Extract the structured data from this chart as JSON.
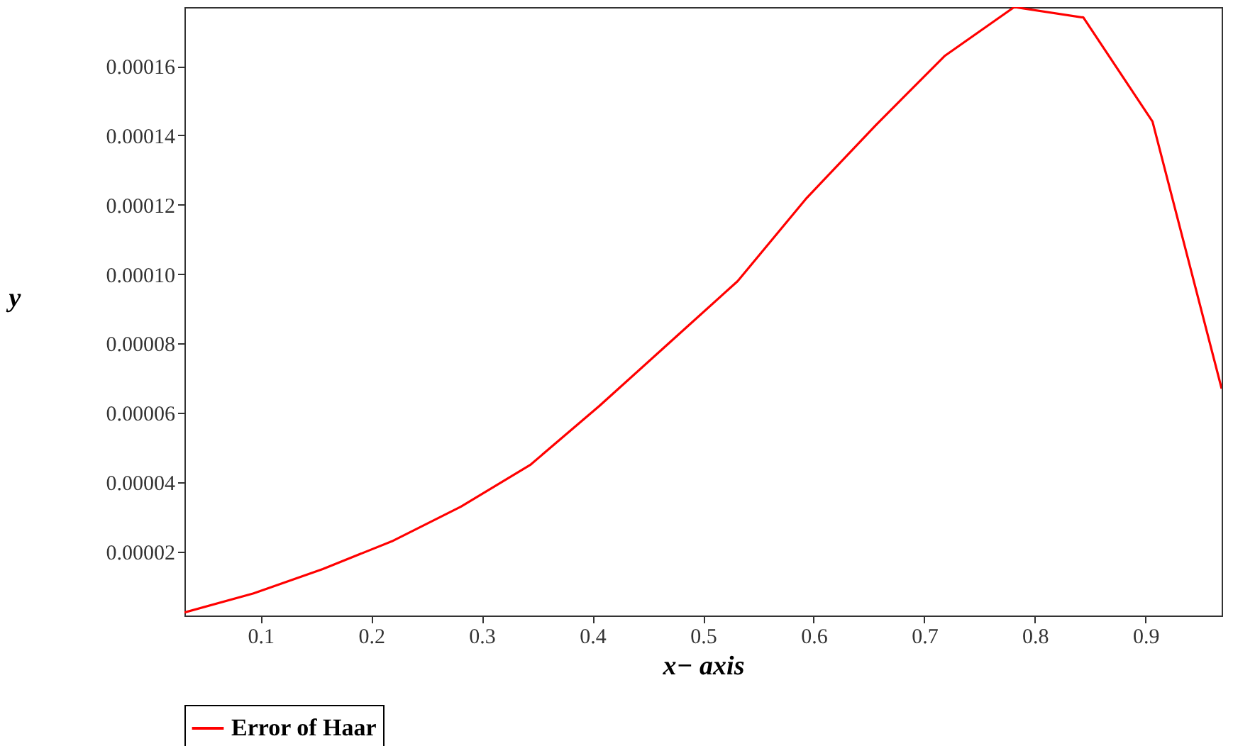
{
  "chart_data": {
    "type": "line",
    "xlabel": "x− axis",
    "ylabel": "y",
    "x": [
      0.03125,
      0.09375,
      0.15625,
      0.21875,
      0.28125,
      0.34375,
      0.40625,
      0.46875,
      0.53125,
      0.59375,
      0.65625,
      0.71875,
      0.78125,
      0.84375,
      0.90625,
      0.96875
    ],
    "series": [
      {
        "name": "Error of Haar",
        "color": "#ff0000",
        "values": [
          2.5e-06,
          8e-06,
          1.5e-05,
          2.3e-05,
          3.3e-05,
          4.5e-05,
          6.2e-05,
          8e-05,
          9.8e-05,
          0.000122,
          0.000143,
          0.000163,
          0.000177,
          0.000174,
          0.000144,
          6.7e-05
        ]
      }
    ],
    "xlim": [
      0.03125,
      0.96875
    ],
    "ylim": [
      1.6e-06,
      0.000177
    ],
    "xticks": [
      0.1,
      0.2,
      0.3,
      0.4,
      0.5,
      0.6,
      0.7,
      0.8,
      0.9
    ],
    "yticks": [
      {
        "value": 2e-05,
        "label": "0.00002"
      },
      {
        "value": 4e-05,
        "label": "0.00004"
      },
      {
        "value": 6e-05,
        "label": "0.00006"
      },
      {
        "value": 8e-05,
        "label": "0.00008"
      },
      {
        "value": 0.0001,
        "label": "0.00010"
      },
      {
        "value": 0.00012,
        "label": "0.00012"
      },
      {
        "value": 0.00014,
        "label": "0.00014"
      },
      {
        "value": 0.00016,
        "label": "0.00016"
      }
    ],
    "grid": false,
    "legend": "bottom",
    "marker": "none",
    "line_style": "solid"
  }
}
